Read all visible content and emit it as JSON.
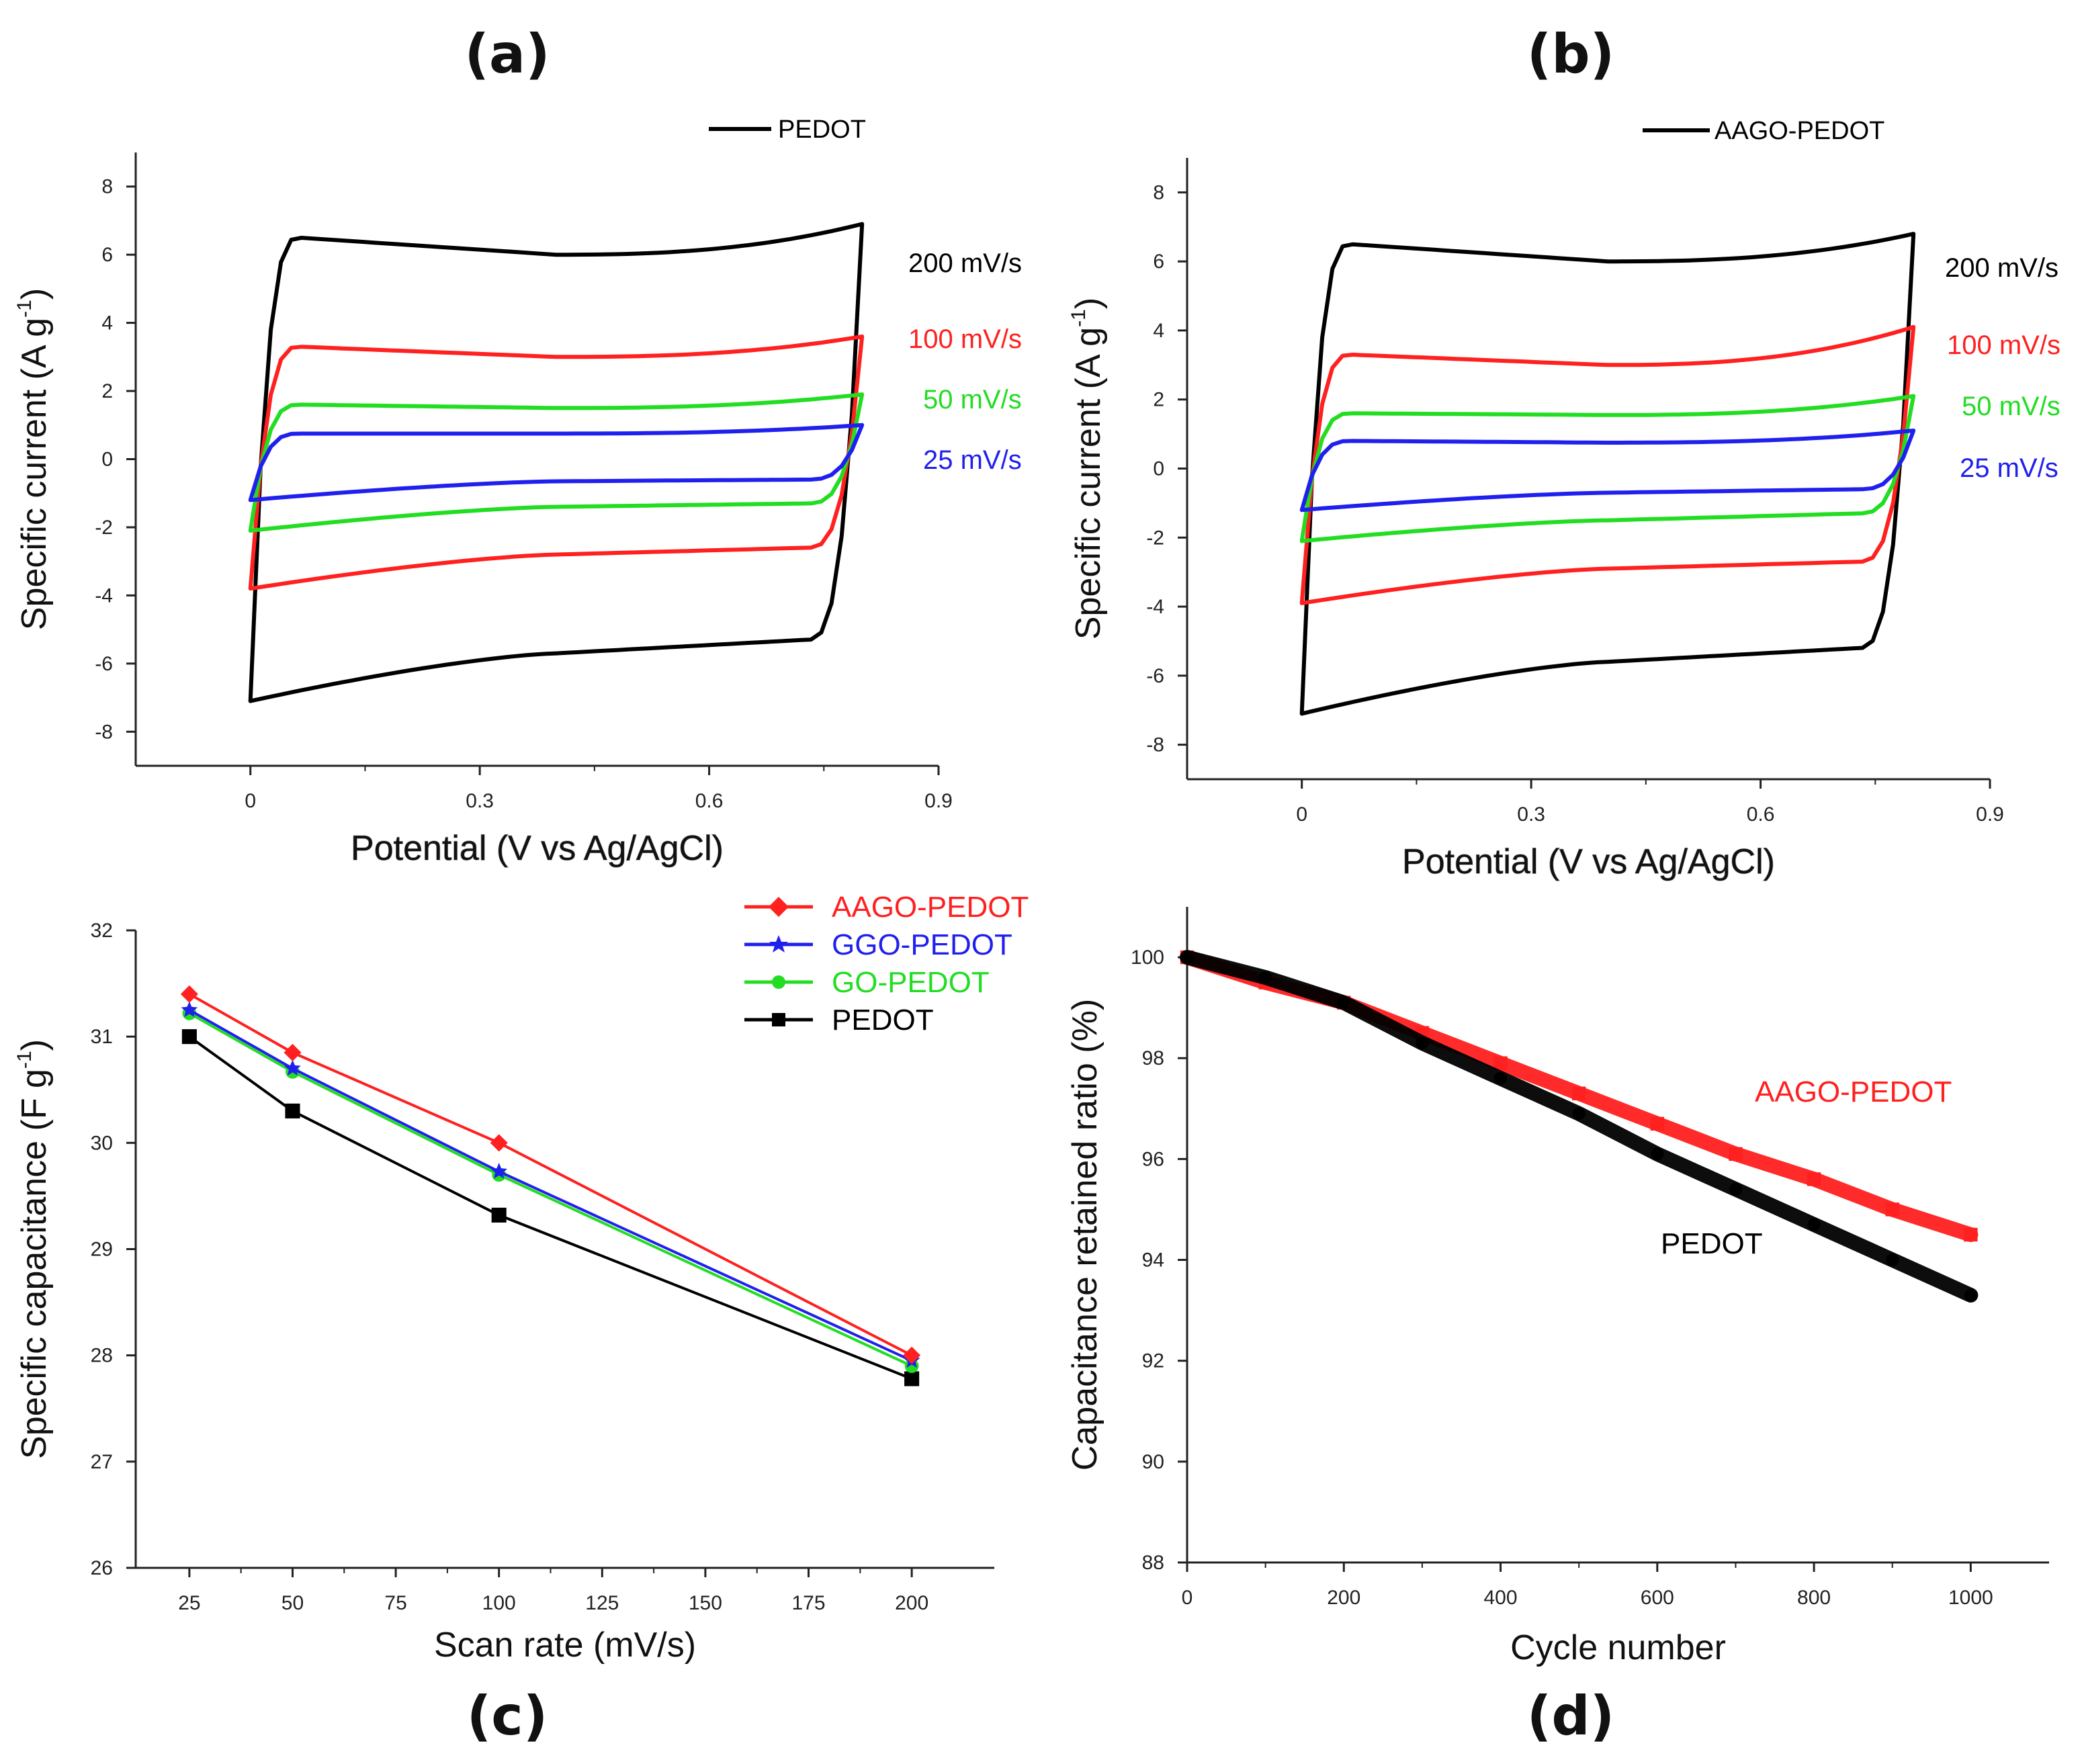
{
  "panels": {
    "a": {
      "label": "(a)",
      "legend": "PEDOT"
    },
    "b": {
      "label": "(b)",
      "legend": "AAGO-PEDOT"
    },
    "c": {
      "label": "(c)"
    },
    "d": {
      "label": "(d)"
    }
  },
  "colors": {
    "black": "#000000",
    "red": "#ff2020",
    "green": "#22dd22",
    "blue": "#2020ee"
  },
  "chart_data": [
    {
      "id": "a",
      "type": "line",
      "title": "(a)",
      "xlabel": "Potential (V vs Ag/AgCl)",
      "ylabel": "Specific current (A g-1)",
      "ylabel_main": "Specific current (A g",
      "ylabel_sup": "-1",
      "ylabel_close": ")",
      "xlim": [
        -0.15,
        0.9
      ],
      "ylim": [
        -9,
        9
      ],
      "xticks": [
        0,
        0.3,
        0.6,
        0.9
      ],
      "xtick_labels": [
        "0",
        "0.3",
        "0.6",
        "0.9"
      ],
      "yticks": [
        -8,
        -6,
        -4,
        -2,
        0,
        2,
        4,
        6,
        8
      ],
      "ytick_labels": [
        "-8",
        "-6",
        "-4",
        "-2",
        "0",
        "2",
        "4",
        "6",
        "8"
      ],
      "legend": [
        "PEDOT"
      ],
      "series": [
        {
          "name": "200 mV/s",
          "color": "#000000",
          "vmin": 0,
          "vmax": 0.8,
          "anodic": [
            6.5,
            6.0,
            6.9
          ],
          "cathodic": [
            -7.1,
            -5.7,
            -5.3
          ]
        },
        {
          "name": "100 mV/s",
          "color": "#ff2020",
          "vmin": 0,
          "vmax": 0.8,
          "anodic": [
            3.3,
            3.0,
            3.6
          ],
          "cathodic": [
            -3.8,
            -2.8,
            -2.6
          ]
        },
        {
          "name": "50 mV/s",
          "color": "#22dd22",
          "vmin": 0,
          "vmax": 0.8,
          "anodic": [
            1.6,
            1.5,
            1.9
          ],
          "cathodic": [
            -2.1,
            -1.4,
            -1.3
          ]
        },
        {
          "name": "25 mV/s",
          "color": "#2020ee",
          "vmin": 0,
          "vmax": 0.8,
          "anodic": [
            0.75,
            0.75,
            1.0
          ],
          "cathodic": [
            -1.2,
            -0.65,
            -0.6
          ]
        }
      ],
      "annotations": [
        {
          "text": "200 mV/s",
          "color": "#000000"
        },
        {
          "text": "100 mV/s",
          "color": "#ff2020"
        },
        {
          "text": "50 mV/s",
          "color": "#22dd22"
        },
        {
          "text": "25 mV/s",
          "color": "#2020ee"
        }
      ]
    },
    {
      "id": "b",
      "type": "line",
      "title": "(b)",
      "xlabel": "Potential (V vs Ag/AgCl)",
      "ylabel": "Specific current (A g-1)",
      "ylabel_main": "Specific current (A g",
      "ylabel_sup": "-1",
      "ylabel_close": ")",
      "xlim": [
        -0.15,
        0.9
      ],
      "ylim": [
        -9,
        9
      ],
      "xticks": [
        0,
        0.3,
        0.6,
        0.9
      ],
      "xtick_labels": [
        "0",
        "0.3",
        "0.6",
        "0.9"
      ],
      "yticks": [
        -8,
        -6,
        -4,
        -2,
        0,
        2,
        4,
        6,
        8
      ],
      "ytick_labels": [
        "-8",
        "-6",
        "-4",
        "-2",
        "0",
        "2",
        "4",
        "6",
        "8"
      ],
      "legend": [
        "AAGO-PEDOT"
      ],
      "series": [
        {
          "name": "200 mV/s",
          "color": "#000000",
          "vmin": 0,
          "vmax": 0.8,
          "anodic": [
            6.5,
            6.0,
            6.8
          ],
          "cathodic": [
            -7.1,
            -5.6,
            -5.2
          ]
        },
        {
          "name": "100 mV/s",
          "color": "#ff2020",
          "vmin": 0,
          "vmax": 0.8,
          "anodic": [
            3.3,
            3.0,
            4.1
          ],
          "cathodic": [
            -3.9,
            -2.9,
            -2.7
          ]
        },
        {
          "name": "50 mV/s",
          "color": "#22dd22",
          "vmin": 0,
          "vmax": 0.8,
          "anodic": [
            1.6,
            1.55,
            2.1
          ],
          "cathodic": [
            -2.1,
            -1.5,
            -1.3
          ]
        },
        {
          "name": "25 mV/s",
          "color": "#2020ee",
          "vmin": 0,
          "vmax": 0.8,
          "anodic": [
            0.8,
            0.75,
            1.1
          ],
          "cathodic": [
            -1.2,
            -0.7,
            -0.6
          ]
        }
      ],
      "annotations": [
        {
          "text": "200 mV/s",
          "color": "#000000"
        },
        {
          "text": "100 mV/s",
          "color": "#ff2020"
        },
        {
          "text": "50 mV/s",
          "color": "#22dd22"
        },
        {
          "text": "25 mV/s",
          "color": "#2020ee"
        }
      ]
    },
    {
      "id": "c",
      "type": "line",
      "title": "(c)",
      "xlabel": "Scan rate (mV/s)",
      "ylabel": "Specific capacitance (F g-1)",
      "ylabel_main": "Specific capacitance (F g",
      "ylabel_sup": "-1",
      "ylabel_close": ")",
      "xlim": [
        12,
        220
      ],
      "ylim": [
        26,
        32
      ],
      "xticks": [
        25,
        50,
        75,
        100,
        125,
        150,
        175,
        200
      ],
      "xtick_labels": [
        "25",
        "50",
        "75",
        "100",
        "125",
        "150",
        "175",
        "200"
      ],
      "yticks": [
        26,
        27,
        28,
        29,
        30,
        31,
        32
      ],
      "ytick_labels": [
        "26",
        "27",
        "28",
        "29",
        "30",
        "31",
        "32"
      ],
      "x": [
        25,
        50,
        100,
        200
      ],
      "series": [
        {
          "name": "AAGO-PEDOT",
          "color": "#ff2020",
          "marker": "diamond",
          "values": [
            31.4,
            30.85,
            30.0,
            28.0
          ]
        },
        {
          "name": "GGO-PEDOT",
          "color": "#2020ee",
          "marker": "star",
          "values": [
            31.25,
            30.7,
            29.73,
            27.95
          ]
        },
        {
          "name": "GO-PEDOT",
          "color": "#22dd22",
          "marker": "circle",
          "values": [
            31.22,
            30.67,
            29.7,
            27.9
          ]
        },
        {
          "name": "PEDOT",
          "color": "#000000",
          "marker": "square",
          "values": [
            31.0,
            30.3,
            29.32,
            27.78
          ]
        }
      ]
    },
    {
      "id": "d",
      "type": "scatter",
      "title": "(d)",
      "xlabel": "Cycle number",
      "ylabel": "Capacitance retained ratio (%)",
      "xlim": [
        0,
        1100
      ],
      "ylim": [
        88,
        101
      ],
      "xticks": [
        0,
        200,
        400,
        600,
        800,
        1000
      ],
      "xtick_labels": [
        "0",
        "200",
        "400",
        "600",
        "800",
        "1000"
      ],
      "yticks": [
        88,
        90,
        92,
        94,
        96,
        98,
        100
      ],
      "ytick_labels": [
        "88",
        "90",
        "92",
        "94",
        "96",
        "98",
        "100"
      ],
      "series": [
        {
          "name": "AAGO-PEDOT",
          "color": "#ff2020",
          "marker": "square",
          "x": [
            0,
            100,
            200,
            300,
            400,
            500,
            600,
            700,
            800,
            900,
            1000
          ],
          "values": [
            100.0,
            99.5,
            99.1,
            98.5,
            97.9,
            97.3,
            96.7,
            96.1,
            95.6,
            95.0,
            94.5
          ]
        },
        {
          "name": "PEDOT",
          "color": "#000000",
          "marker": "circle",
          "x": [
            0,
            100,
            200,
            300,
            400,
            500,
            600,
            700,
            800,
            900,
            1000
          ],
          "values": [
            100.0,
            99.6,
            99.1,
            98.3,
            97.6,
            96.9,
            96.1,
            95.4,
            94.7,
            94.0,
            93.3
          ]
        }
      ],
      "annotations": [
        {
          "text": "AAGO-PEDOT",
          "color": "#ff2020"
        },
        {
          "text": "PEDOT",
          "color": "#000000"
        }
      ]
    }
  ]
}
